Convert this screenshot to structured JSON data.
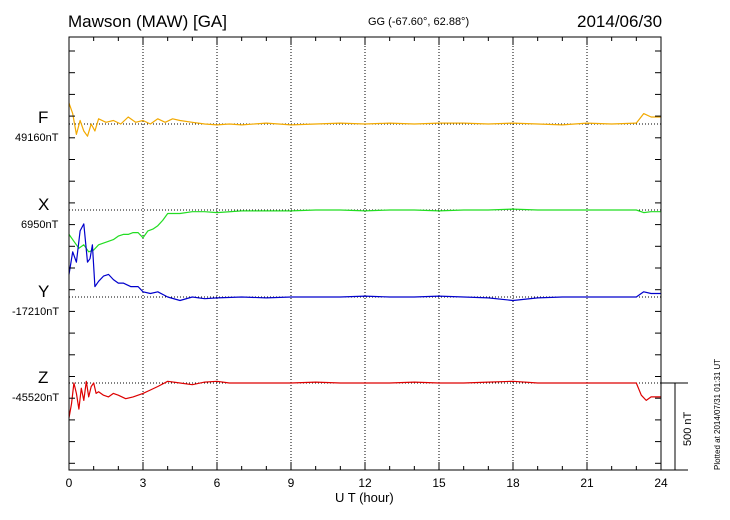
{
  "header": {
    "station": "Mawson (MAW)  [GA]",
    "coords": "GG (-67.60°,  62.88°)",
    "date": "2014/06/30"
  },
  "footer": {
    "xlabel": "U T (hour)",
    "scale_label": "500 nT",
    "plotted": "Plotted at 2014/07/31 01:31  UT"
  },
  "colors": {
    "F": "#f2a900",
    "X": "#22dd22",
    "Y": "#0000cc",
    "Z": "#dd0000"
  },
  "chart_data": {
    "type": "line",
    "title": "Mawson (MAW)  [GA]",
    "xlabel": "U T (hour)",
    "ylabel": "nT",
    "xlim": [
      0,
      24
    ],
    "x_ticks": [
      "0",
      "3",
      "6",
      "9",
      "12",
      "15",
      "18",
      "21",
      "24"
    ],
    "scale_nT": 500,
    "series": [
      {
        "name": "F",
        "baseline_label": "49160nT",
        "baseline_nT": 49160,
        "x": [
          0,
          0.15,
          0.3,
          0.45,
          0.6,
          0.75,
          0.9,
          1.05,
          1.2,
          1.5,
          1.8,
          2.1,
          2.4,
          2.7,
          3.0,
          3.3,
          3.6,
          3.9,
          4.2,
          4.5,
          5.0,
          5.5,
          6.0,
          6.5,
          7.0,
          8.0,
          9.0,
          10.0,
          11.0,
          12.0,
          13.0,
          14.0,
          15.0,
          16.0,
          17.0,
          18.0,
          19.0,
          20.0,
          21.0,
          22.0,
          23.0,
          23.3,
          23.6,
          24.0
        ],
        "values": [
          120,
          60,
          -60,
          20,
          -40,
          -70,
          0,
          -40,
          30,
          10,
          20,
          0,
          40,
          10,
          20,
          0,
          30,
          10,
          30,
          20,
          10,
          0,
          -5,
          0,
          -5,
          5,
          -5,
          0,
          5,
          0,
          5,
          0,
          5,
          5,
          0,
          5,
          0,
          -5,
          5,
          0,
          5,
          60,
          40,
          40
        ]
      },
      {
        "name": "X",
        "baseline_label": "6950nT",
        "baseline_nT": 6950,
        "x": [
          0,
          0.2,
          0.4,
          0.6,
          0.8,
          1.0,
          1.2,
          1.4,
          1.6,
          1.8,
          2.0,
          2.2,
          2.4,
          2.6,
          2.8,
          3.0,
          3.2,
          3.4,
          3.6,
          3.8,
          4.0,
          4.5,
          5.0,
          5.5,
          6.0,
          7.0,
          8.0,
          9.0,
          10.0,
          11.0,
          12.0,
          13.0,
          14.0,
          15.0,
          16.0,
          17.0,
          18.0,
          19.0,
          20.0,
          21.0,
          22.0,
          23.0,
          23.3,
          23.6,
          24.0
        ],
        "values": [
          -140,
          -180,
          -220,
          -200,
          -240,
          -230,
          -200,
          -190,
          -180,
          -170,
          -150,
          -140,
          -140,
          -130,
          -130,
          -160,
          -120,
          -110,
          -90,
          -60,
          -20,
          -20,
          -10,
          -10,
          -15,
          -5,
          -5,
          -5,
          0,
          0,
          -5,
          0,
          0,
          -5,
          0,
          0,
          5,
          0,
          0,
          0,
          0,
          0,
          -15,
          -10,
          -10
        ]
      },
      {
        "name": "Y",
        "baseline_label": "-17210nT",
        "baseline_nT": -17210,
        "x": [
          0,
          0.15,
          0.3,
          0.45,
          0.6,
          0.75,
          0.85,
          0.95,
          1.05,
          1.2,
          1.4,
          1.6,
          1.8,
          2.0,
          2.2,
          2.5,
          2.8,
          3.0,
          3.3,
          3.6,
          4.0,
          4.5,
          5.0,
          5.5,
          6.0,
          7.0,
          8.0,
          9.0,
          10.0,
          11.0,
          12.0,
          13.0,
          14.0,
          15.0,
          16.0,
          17.0,
          18.0,
          19.0,
          20.0,
          21.0,
          22.0,
          23.0,
          23.3,
          23.6,
          24.0
        ],
        "values": [
          130,
          260,
          200,
          380,
          420,
          200,
          220,
          300,
          60,
          90,
          120,
          130,
          100,
          80,
          80,
          60,
          60,
          30,
          20,
          30,
          0,
          -20,
          0,
          -10,
          -5,
          0,
          -5,
          0,
          0,
          0,
          5,
          0,
          0,
          5,
          0,
          -5,
          -20,
          -5,
          0,
          0,
          0,
          0,
          30,
          20,
          20
        ]
      },
      {
        "name": "Z",
        "baseline_label": "-45520nT",
        "baseline_nT": -45520,
        "x": [
          0,
          0.1,
          0.2,
          0.3,
          0.4,
          0.5,
          0.6,
          0.7,
          0.8,
          0.9,
          1.0,
          1.1,
          1.2,
          1.4,
          1.6,
          1.8,
          2.0,
          2.3,
          2.6,
          3.0,
          3.3,
          3.6,
          4.0,
          4.5,
          5.0,
          5.5,
          6.0,
          6.5,
          7.0,
          8.0,
          9.0,
          10.0,
          11.0,
          12.0,
          13.0,
          14.0,
          15.0,
          16.0,
          17.0,
          18.0,
          19.0,
          20.0,
          21.0,
          22.0,
          23.0,
          23.2,
          23.4,
          23.6,
          24.0
        ],
        "values": [
          -200,
          -120,
          0,
          -60,
          -150,
          -30,
          -100,
          10,
          -80,
          -20,
          0,
          -60,
          -50,
          -70,
          -80,
          -60,
          -70,
          -90,
          -80,
          -60,
          -40,
          -20,
          10,
          0,
          -10,
          5,
          10,
          0,
          0,
          0,
          0,
          5,
          0,
          0,
          0,
          5,
          0,
          0,
          5,
          10,
          0,
          0,
          0,
          0,
          0,
          -70,
          -100,
          -80,
          -80
        ]
      }
    ]
  }
}
